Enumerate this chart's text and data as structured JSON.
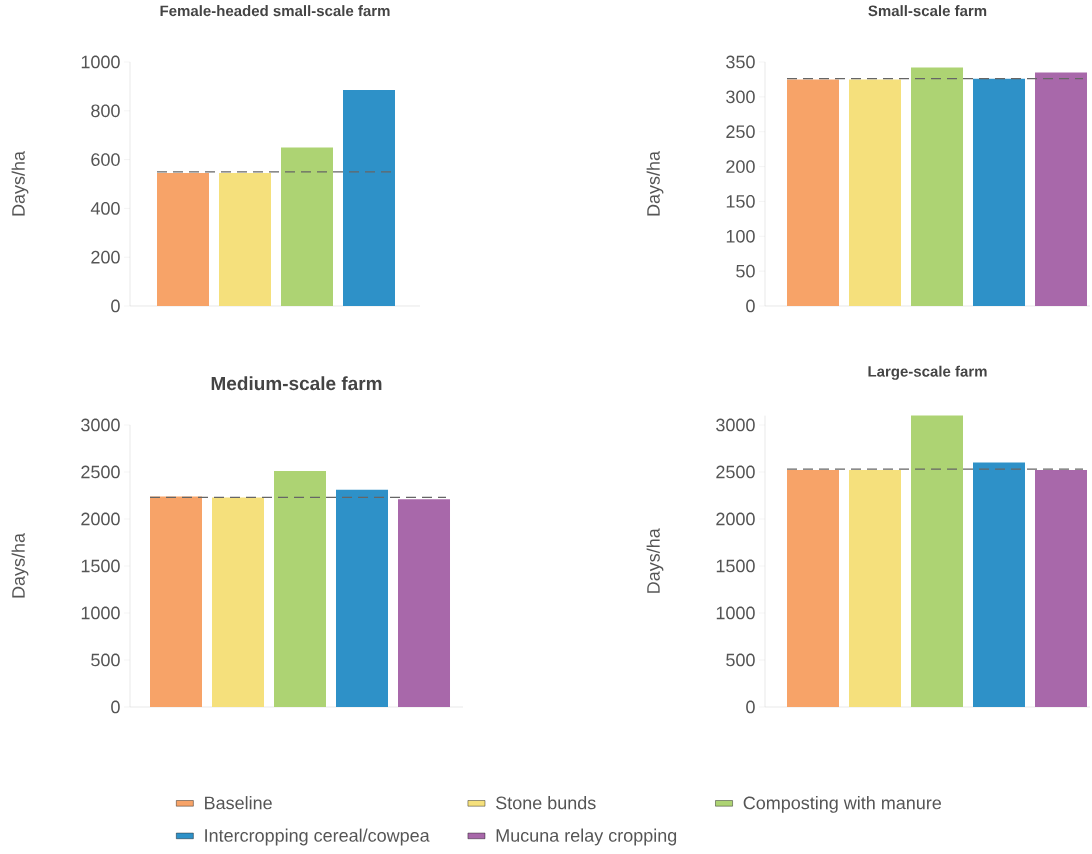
{
  "chart_data": [
    {
      "type": "bar",
      "title": "Female-headed small-scale farm",
      "ylabel": "Days/ha",
      "categories": [
        null
      ],
      "tick_labels": "y",
      "series": [
        {
          "color": "#f7a368",
          "values": [
            545
          ]
        },
        {
          "color": "#f5e07c",
          "values": [
            545
          ]
        },
        {
          "color": "#add373",
          "values": [
            650
          ]
        },
        {
          "color": "#2e91c8",
          "values": [
            885
          ]
        }
      ],
      "ylim": [
        0,
        1000
      ],
      "yticks": [
        0,
        200,
        400,
        600,
        800,
        1000
      ],
      "ref_lines": [
        {
          "axis": "y",
          "value": 550,
          "color": "#666666",
          "line_style": "dashed"
        }
      ]
    },
    {
      "type": "bar",
      "title": "Small-scale farm",
      "ylabel": "Days/ha",
      "categories": [
        null
      ],
      "tick_labels": "y",
      "series": [
        {
          "color": "#f7a368",
          "values": [
            325
          ]
        },
        {
          "color": "#f5e07c",
          "values": [
            325
          ]
        },
        {
          "color": "#add373",
          "values": [
            342
          ]
        },
        {
          "color": "#2e91c8",
          "values": [
            326
          ]
        },
        {
          "color": "#a868aa",
          "values": [
            335
          ]
        }
      ],
      "ylim": [
        0,
        350
      ],
      "yticks": [
        0,
        50,
        100,
        150,
        200,
        250,
        300,
        350
      ],
      "ref_lines": [
        {
          "axis": "y",
          "value": 326,
          "color": "#666666",
          "line_style": "dashed"
        }
      ]
    },
    {
      "type": "bar",
      "title": "Medium-scale farm",
      "ylabel": "Days/ha",
      "categories": [
        null
      ],
      "tick_labels": "y",
      "series": [
        {
          "color": "#f7a368",
          "values": [
            2240
          ]
        },
        {
          "color": "#f5e07c",
          "values": [
            2230
          ]
        },
        {
          "color": "#add373",
          "values": [
            2510
          ]
        },
        {
          "color": "#2e91c8",
          "values": [
            2310
          ]
        },
        {
          "color": "#a868aa",
          "values": [
            2210
          ]
        }
      ],
      "ylim": [
        0,
        3000
      ],
      "yticks": [
        0,
        500,
        1000,
        1500,
        2000,
        2500,
        3000
      ],
      "ref_lines": [
        {
          "axis": "y",
          "value": 2230,
          "color": "#666666",
          "line_style": "dashed"
        }
      ]
    },
    {
      "type": "bar",
      "title": "Large-scale farm",
      "ylabel": "Days/ha",
      "categories": [
        null
      ],
      "tick_labels": "y",
      "series": [
        {
          "name": "Baseline",
          "color": "#f7a368",
          "values": [
            2520
          ]
        },
        {
          "name": "Stone bunds",
          "color": "#f5e07c",
          "values": [
            2520
          ]
        },
        {
          "name": "Composting with manure",
          "color": "#add373",
          "values": [
            3100
          ]
        },
        {
          "name": "Intercropping cereal/cowpea",
          "color": "#2e91c8",
          "values": [
            2600
          ]
        },
        {
          "name": "Mucuna relay cropping",
          "color": "#a868aa",
          "values": [
            2520
          ]
        }
      ],
      "ylim": [
        0,
        3100
      ],
      "yticks": [
        0,
        500,
        1000,
        1500,
        2000,
        2500,
        3000
      ],
      "ref_lines": [
        {
          "axis": "y",
          "value": 2530,
          "color": "#666666",
          "line_style": "dashed"
        }
      ],
      "legend": "bottom"
    }
  ]
}
